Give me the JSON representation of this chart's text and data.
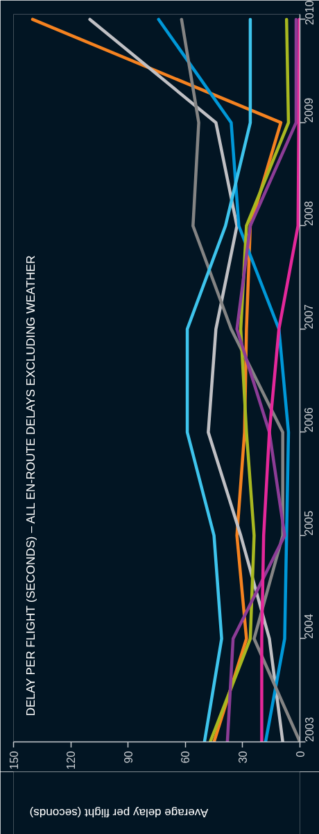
{
  "chart_data": {
    "type": "line",
    "orientation": "horizontal",
    "title": "DELAY PER FLIGHT (SECONDS) – ALL EN-ROUTE DELAYS EXCLUDING WEATHER",
    "xlabel": "Average delay per flight (seconds)",
    "categories": [
      "2010",
      "2009",
      "2008",
      "2007",
      "2006",
      "2005",
      "2004",
      "2003"
    ],
    "xlim": [
      150,
      0
    ],
    "xticks": [
      0,
      30,
      60,
      90,
      120,
      150
    ],
    "grid": false,
    "marker": "none",
    "line_style": "solid",
    "series": [
      {
        "color": "#f58220",
        "values": [
          140,
          10,
          26,
          28,
          29,
          33,
          28,
          45
        ]
      },
      {
        "color": "#c0c0c4",
        "values": [
          110,
          44,
          33,
          44,
          48,
          31,
          16,
          9
        ]
      },
      {
        "color": "#0098d8",
        "values": [
          74,
          36,
          32,
          11,
          6,
          7,
          8,
          18
        ]
      },
      {
        "color": "#848484",
        "values": [
          62,
          53,
          56,
          36,
          9,
          9,
          24,
          0
        ]
      },
      {
        "color": "#3ec4ec",
        "values": [
          26,
          26,
          39,
          59,
          59,
          45,
          41,
          50
        ]
      },
      {
        "color": "#a8b820",
        "values": [
          7,
          6,
          28,
          31,
          28,
          24,
          26,
          47
        ]
      },
      {
        "color": "#8c3c96",
        "values": [
          2,
          2,
          26,
          33,
          16,
          8,
          35,
          38
        ]
      },
      {
        "color": "#e4289a",
        "values": [
          0.3,
          0.6,
          1,
          11,
          16,
          19,
          20,
          20
        ]
      }
    ]
  }
}
